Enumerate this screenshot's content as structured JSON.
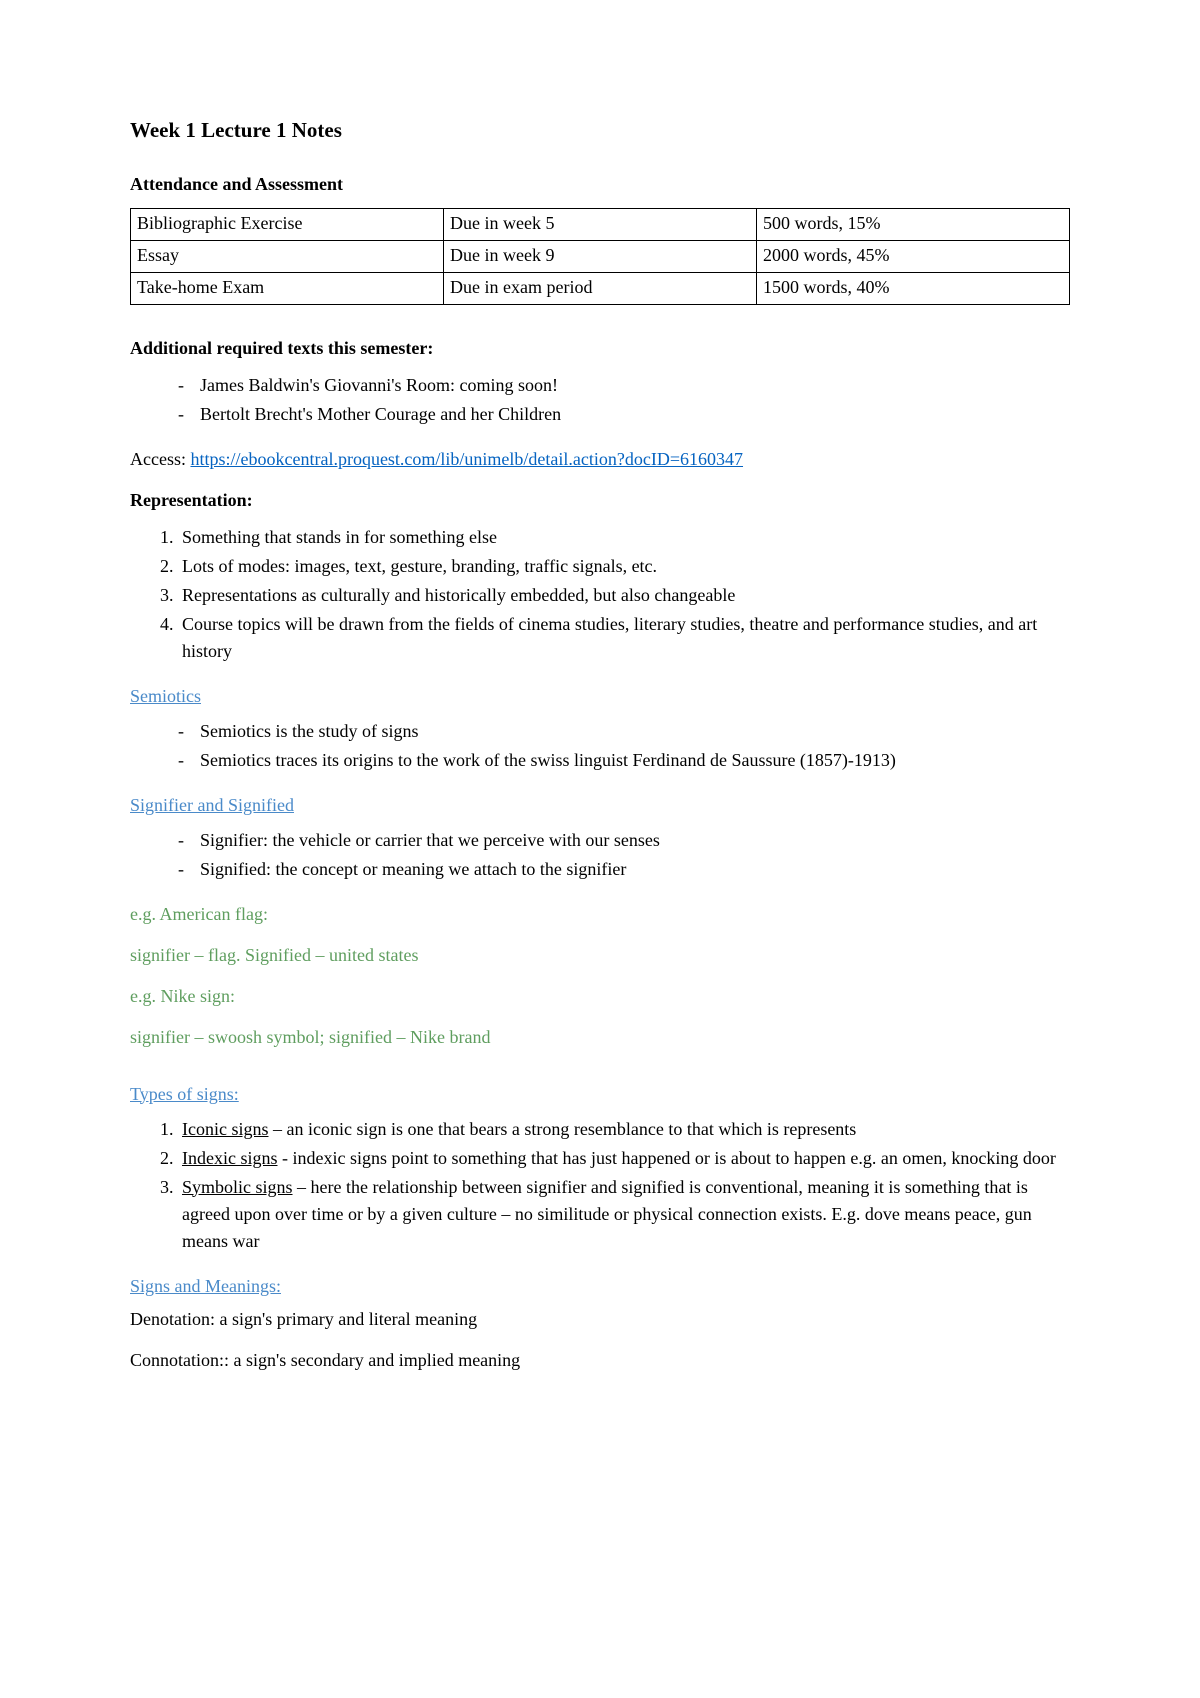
{
  "title": "Week 1 Lecture 1 Notes",
  "attendance": {
    "heading": "Attendance and Assessment",
    "rows": [
      {
        "c1": "Bibliographic Exercise",
        "c2": "Due in week 5",
        "c3": "500 words, 15%"
      },
      {
        "c1": "Essay",
        "c2": "Due in week 9",
        "c3": "2000 words, 45%"
      },
      {
        "c1": "Take-home Exam",
        "c2": "Due in exam period",
        "c3": "1500 words, 40%"
      }
    ]
  },
  "texts": {
    "heading": "Additional required texts this semester:",
    "items": [
      "James Baldwin's Giovanni's Room: coming soon!",
      "Bertolt Brecht's Mother Courage and her Children"
    ],
    "access_label": "Access: ",
    "access_url": "https://ebookcentral.proquest.com/lib/unimelb/detail.action?docID=6160347"
  },
  "representation": {
    "heading": "Representation:",
    "items": [
      "Something that stands in for something else",
      "Lots of modes: images, text, gesture, branding, traffic signals, etc.",
      "Representations as culturally and historically embedded, but also changeable",
      "Course topics will be drawn from the fields of cinema studies, literary studies, theatre and performance studies, and art history"
    ]
  },
  "semiotics": {
    "heading": "Semiotics",
    "items": [
      "Semiotics is the study of signs",
      "Semiotics traces its origins to the work of the swiss linguist Ferdinand de Saussure (1857)-1913)"
    ]
  },
  "signifier": {
    "heading": "Signifier and Signified",
    "items": [
      "Signifier: the vehicle or carrier that we perceive with our senses",
      "Signified: the concept or meaning we attach to the signifier"
    ],
    "ex1a": "e.g. American flag:",
    "ex1b": "signifier – flag. Signified – united states",
    "ex2a": "e.g. Nike sign:",
    "ex2b": "signifier – swoosh symbol; signified – Nike brand"
  },
  "types": {
    "heading": "Types of signs:",
    "items": [
      {
        "label": "Iconic signs",
        "text": " – an iconic sign is one that bears a strong resemblance to that which is represents"
      },
      {
        "label": "Indexic signs",
        "text": " - indexic signs point to something that has just happened or is about to happen e.g. an omen, knocking door"
      },
      {
        "label": "Symbolic signs",
        "text": " – here the relationship between signifier and signified is conventional, meaning it is something that is agreed upon over time or by a given culture – no similitude or physical connection exists. E.g. dove means peace, gun means war"
      }
    ]
  },
  "meanings": {
    "heading": "Signs and Meanings:",
    "line1": "Denotation: a sign's primary and literal meaning",
    "line2": "Connotation:: a sign's secondary and implied meaning"
  }
}
